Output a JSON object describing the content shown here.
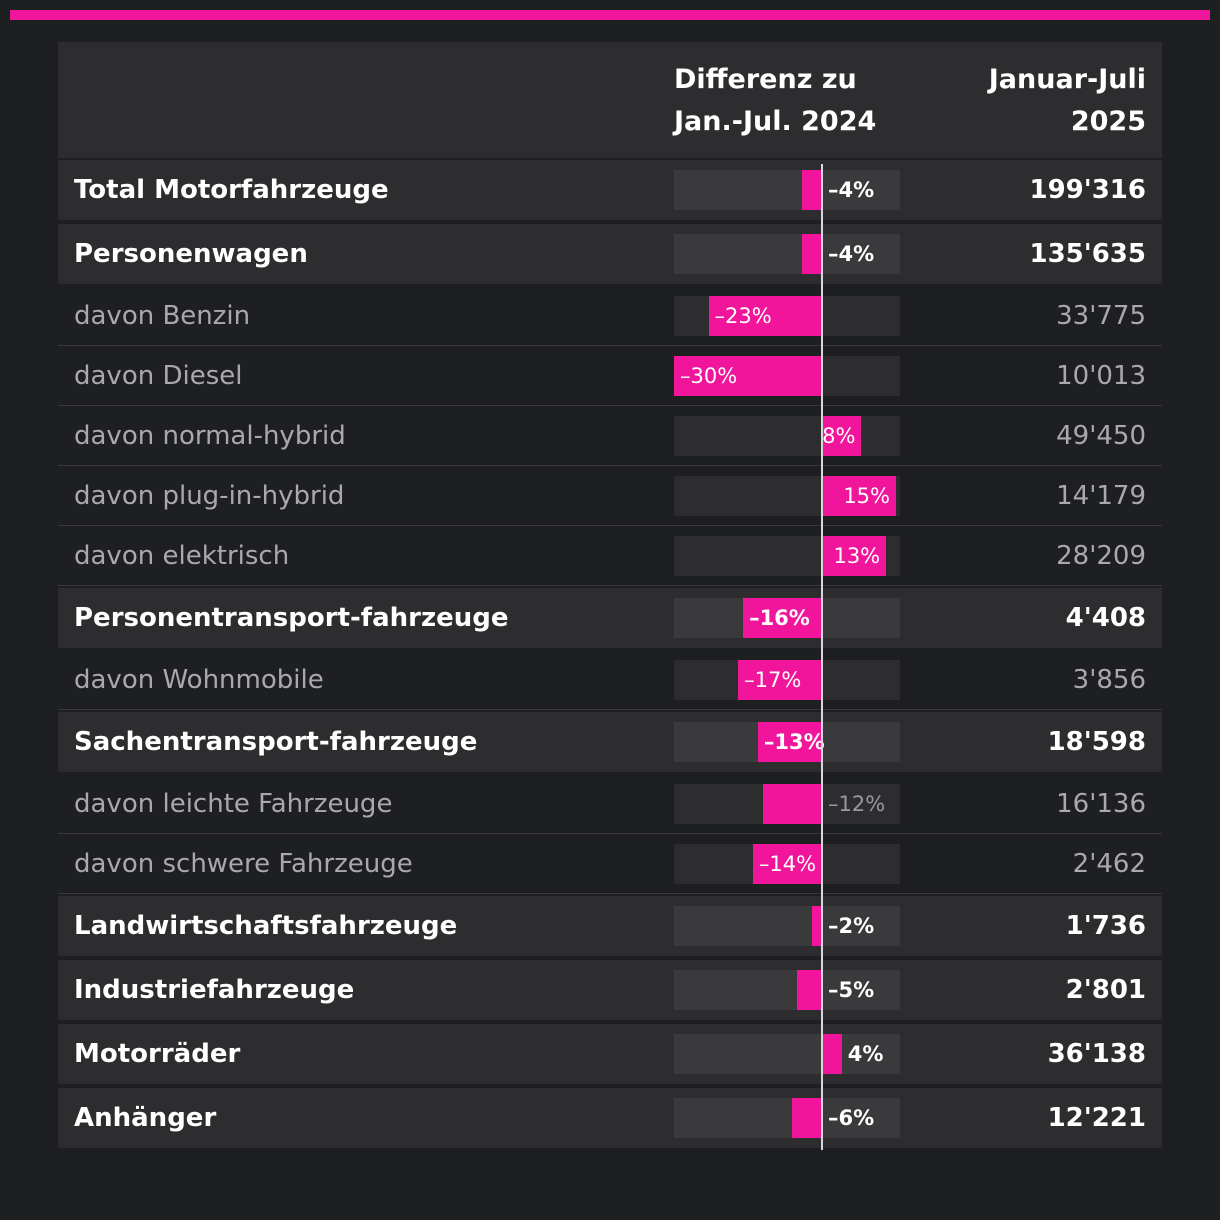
{
  "accent_color": "#f0159a",
  "header": {
    "diff_label": "Differenz zu\nJan.-Jul. 2024",
    "value_label": "Januar-Juli\n2025"
  },
  "chart_data": {
    "type": "bar",
    "orientation": "horizontal-diverging",
    "xlim": [
      -30,
      15
    ],
    "series": [
      {
        "name": "Differenz zu Jan.-Jul. 2024 (%)",
        "values": [
          -4,
          -4,
          -23,
          -30,
          8,
          15,
          13,
          -16,
          -17,
          -13,
          -12,
          -14,
          -2,
          -5,
          4,
          -6
        ]
      },
      {
        "name": "Januar-Juli 2025",
        "values": [
          199316,
          135635,
          33775,
          10013,
          49450,
          14179,
          28209,
          4408,
          3856,
          18598,
          16136,
          2462,
          1736,
          2801,
          36138,
          12221
        ]
      }
    ],
    "rows": [
      {
        "category": "Total Motorfahrzeuge",
        "level": "main",
        "diff": -4,
        "diff_label": "–4%",
        "value": "199'316"
      },
      {
        "category": "Personenwagen",
        "level": "main",
        "diff": -4,
        "diff_label": "–4%",
        "value": "135'635"
      },
      {
        "category": "davon Benzin",
        "level": "sub",
        "diff": -23,
        "diff_label": "–23%",
        "value": "33'775"
      },
      {
        "category": "davon Diesel",
        "level": "sub",
        "diff": -30,
        "diff_label": "–30%",
        "value": "10'013"
      },
      {
        "category": "davon normal-hybrid",
        "level": "sub",
        "diff": 8,
        "diff_label": "8%",
        "value": "49'450"
      },
      {
        "category": "davon plug-in-hybrid",
        "level": "sub",
        "diff": 15,
        "diff_label": "15%",
        "value": "14'179"
      },
      {
        "category": "davon elektrisch",
        "level": "sub",
        "diff": 13,
        "diff_label": "13%",
        "value": "28'209"
      },
      {
        "category": "Personentransport-fahrzeuge",
        "level": "main",
        "diff": -16,
        "diff_label": "–16%",
        "value": "4'408"
      },
      {
        "category": "davon Wohnmobile",
        "level": "sub",
        "diff": -17,
        "diff_label": "–17%",
        "value": "3'856"
      },
      {
        "category": "Sachentransport-fahrzeuge",
        "level": "main",
        "diff": -13,
        "diff_label": "–13%",
        "value": "18'598"
      },
      {
        "category": "davon leichte Fahrzeuge",
        "level": "sub",
        "diff": -12,
        "diff_label": "–12%",
        "value": "16'136"
      },
      {
        "category": "davon schwere Fahrzeuge",
        "level": "sub",
        "diff": -14,
        "diff_label": "–14%",
        "value": "2'462"
      },
      {
        "category": "Landwirtschaftsfahrzeuge",
        "level": "main",
        "diff": -2,
        "diff_label": "–2%",
        "value": "1'736"
      },
      {
        "category": "Industriefahrzeuge",
        "level": "main",
        "diff": -5,
        "diff_label": "–5%",
        "value": "2'801"
      },
      {
        "category": "Motorräder",
        "level": "main",
        "diff": 4,
        "diff_label": "4%",
        "value": "36'138"
      },
      {
        "category": "Anhänger",
        "level": "main",
        "diff": -6,
        "diff_label": "–6%",
        "value": "12'221"
      }
    ]
  }
}
